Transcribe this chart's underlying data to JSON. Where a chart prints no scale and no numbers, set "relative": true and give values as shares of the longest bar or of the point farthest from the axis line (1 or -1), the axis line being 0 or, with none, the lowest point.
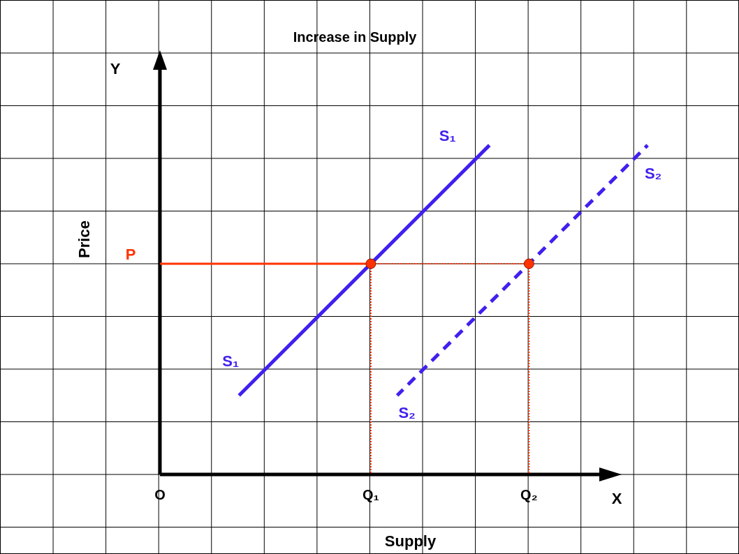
{
  "chart_data": {
    "type": "line",
    "title": "Increase in Supply",
    "xlabel": "Supply",
    "ylabel": "Price",
    "relative": true,
    "legend": false,
    "grid": true,
    "categories": [
      "O",
      null,
      null,
      null,
      null,
      null,
      null,
      null,
      null,
      null,
      null,
      null,
      null,
      null,
      null,
      null,
      "Q₁",
      null,
      null,
      null,
      null,
      null,
      null,
      null,
      null,
      null,
      null,
      null,
      "Q₂",
      null,
      null,
      null,
      null,
      null,
      null,
      null,
      null,
      null,
      null
    ],
    "series": [
      {
        "name": "S₁",
        "color": "#4020ee",
        "line_style": "solid",
        "values": [
          null,
          null,
          null,
          null,
          null,
          null,
          0.24,
          null,
          null,
          null,
          null,
          null,
          null,
          null,
          null,
          null,
          null,
          null,
          null,
          null,
          null,
          null,
          null,
          null,
          null,
          1,
          null,
          null,
          null,
          null,
          null,
          null,
          null,
          null,
          null,
          null,
          null,
          null,
          null
        ]
      },
      {
        "name": "S₂",
        "color": "#4020ee",
        "line_style": "dashed",
        "values": [
          null,
          null,
          null,
          null,
          null,
          null,
          null,
          null,
          null,
          null,
          null,
          null,
          null,
          null,
          null,
          null,
          null,
          null,
          0.24,
          null,
          null,
          null,
          null,
          null,
          null,
          null,
          null,
          null,
          null,
          null,
          null,
          null,
          null,
          null,
          null,
          null,
          null,
          1,
          null
        ]
      },
      {
        "name": "P",
        "color": "#ff3300",
        "line_style": "solid",
        "values": [
          0.64,
          null,
          null,
          null,
          null,
          null,
          null,
          null,
          null,
          null,
          null,
          null,
          null,
          null,
          null,
          null,
          0.64,
          null,
          null,
          null,
          null,
          null,
          null,
          null,
          null,
          null,
          null,
          null,
          null,
          null,
          null,
          null,
          null,
          null,
          null,
          null,
          null,
          null,
          null
        ]
      },
      {
        "color": "#ff3300",
        "line_style": "dotted",
        "values": [
          null,
          null,
          null,
          null,
          null,
          null,
          null,
          null,
          null,
          null,
          null,
          null,
          null,
          null,
          null,
          null,
          0.64,
          null,
          null,
          null,
          null,
          null,
          null,
          null,
          null,
          null,
          null,
          null,
          0.64,
          null,
          null,
          null,
          null,
          null,
          null,
          null,
          null,
          null,
          null
        ]
      },
      {
        "color": "#ff3300",
        "line_style": "dotted",
        "x": [
          "Q₁",
          "Q₁"
        ],
        "values": [
          0,
          0.64
        ]
      },
      {
        "color": "#ff3300",
        "line_style": "dotted",
        "x": [
          "Q₂",
          "Q₂"
        ],
        "values": [
          0,
          0.64
        ]
      },
      {
        "type": "scatter",
        "color": "#ff3300",
        "marker": "circle",
        "x": [
          "Q₁",
          "Q₂"
        ],
        "values": [
          0.64,
          0.64
        ]
      }
    ],
    "annotations": [
      "X",
      "Y"
    ]
  }
}
